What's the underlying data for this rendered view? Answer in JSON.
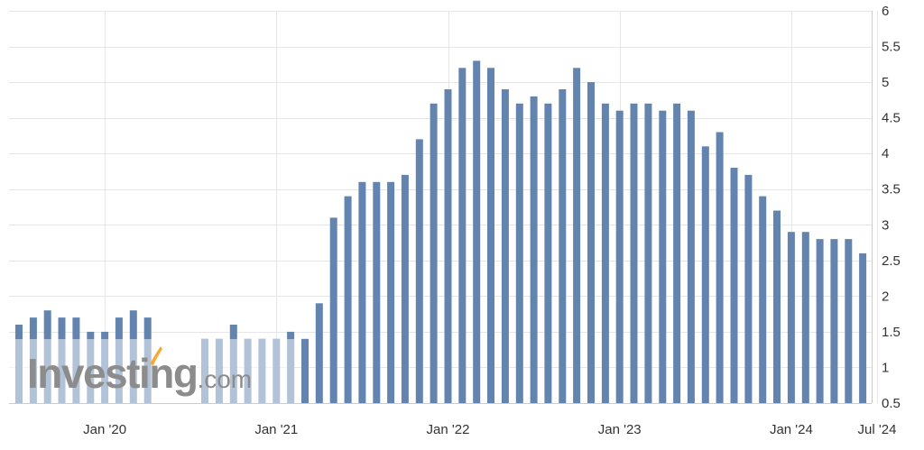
{
  "chart_data": {
    "type": "bar",
    "title": "",
    "xlabel": "",
    "ylabel": "",
    "ylim": [
      0.5,
      6
    ],
    "y_ticks": [
      0.5,
      1,
      1.5,
      2,
      2.5,
      3,
      3.5,
      4,
      4.5,
      5,
      5.5,
      6
    ],
    "y_axis_side": "right",
    "grid": true,
    "legend": "none",
    "x_tick_labels": [
      {
        "label": "Jan '20",
        "category": "2020-01"
      },
      {
        "label": "Jan '21",
        "category": "2021-01"
      },
      {
        "label": "Jan '22",
        "category": "2022-01"
      },
      {
        "label": "Jan '23",
        "category": "2023-01"
      },
      {
        "label": "Jan '24",
        "category": "2024-01"
      },
      {
        "label": "Jul '24",
        "category": "2024-07"
      }
    ],
    "categories": [
      "2019-07",
      "2019-08",
      "2019-09",
      "2019-10",
      "2019-11",
      "2019-12",
      "2020-01",
      "2020-02",
      "2020-03",
      "2020-04",
      "2020-05",
      "2020-06",
      "2020-07",
      "2020-08",
      "2020-09",
      "2020-10",
      "2020-11",
      "2020-12",
      "2021-01",
      "2021-02",
      "2021-03",
      "2021-04",
      "2021-05",
      "2021-06",
      "2021-07",
      "2021-08",
      "2021-09",
      "2021-10",
      "2021-11",
      "2021-12",
      "2022-01",
      "2022-02",
      "2022-03",
      "2022-04",
      "2022-05",
      "2022-06",
      "2022-07",
      "2022-08",
      "2022-09",
      "2022-10",
      "2022-11",
      "2022-12",
      "2023-01",
      "2023-02",
      "2023-03",
      "2023-04",
      "2023-05",
      "2023-06",
      "2023-07",
      "2023-08",
      "2023-09",
      "2023-10",
      "2023-11",
      "2023-12",
      "2024-01",
      "2024-02",
      "2024-03",
      "2024-04",
      "2024-05",
      "2024-06",
      "2024-07"
    ],
    "values": [
      1.6,
      1.7,
      1.8,
      1.7,
      1.7,
      1.5,
      1.5,
      1.7,
      1.8,
      1.7,
      null,
      null,
      null,
      1.4,
      1.4,
      1.6,
      1.4,
      1.4,
      1.4,
      1.5,
      1.4,
      1.9,
      3.1,
      3.4,
      3.6,
      3.6,
      3.6,
      3.7,
      4.2,
      4.7,
      4.9,
      5.2,
      5.3,
      5.2,
      4.9,
      4.7,
      4.8,
      4.7,
      4.9,
      5.2,
      5.0,
      4.7,
      4.6,
      4.7,
      4.7,
      4.6,
      4.7,
      4.6,
      4.1,
      4.3,
      3.8,
      3.7,
      3.4,
      3.2,
      2.9,
      2.9,
      2.8,
      2.8,
      2.8,
      2.6,
      null
    ],
    "colors": {
      "bar": "#6484b0",
      "grid": "#e6e6e6",
      "axis": "#cccccc",
      "watermark_text": "#8c8c8c",
      "watermark_accent": "#f7a935"
    }
  },
  "watermark": {
    "brand": "Investing",
    "suffix": ".com"
  }
}
